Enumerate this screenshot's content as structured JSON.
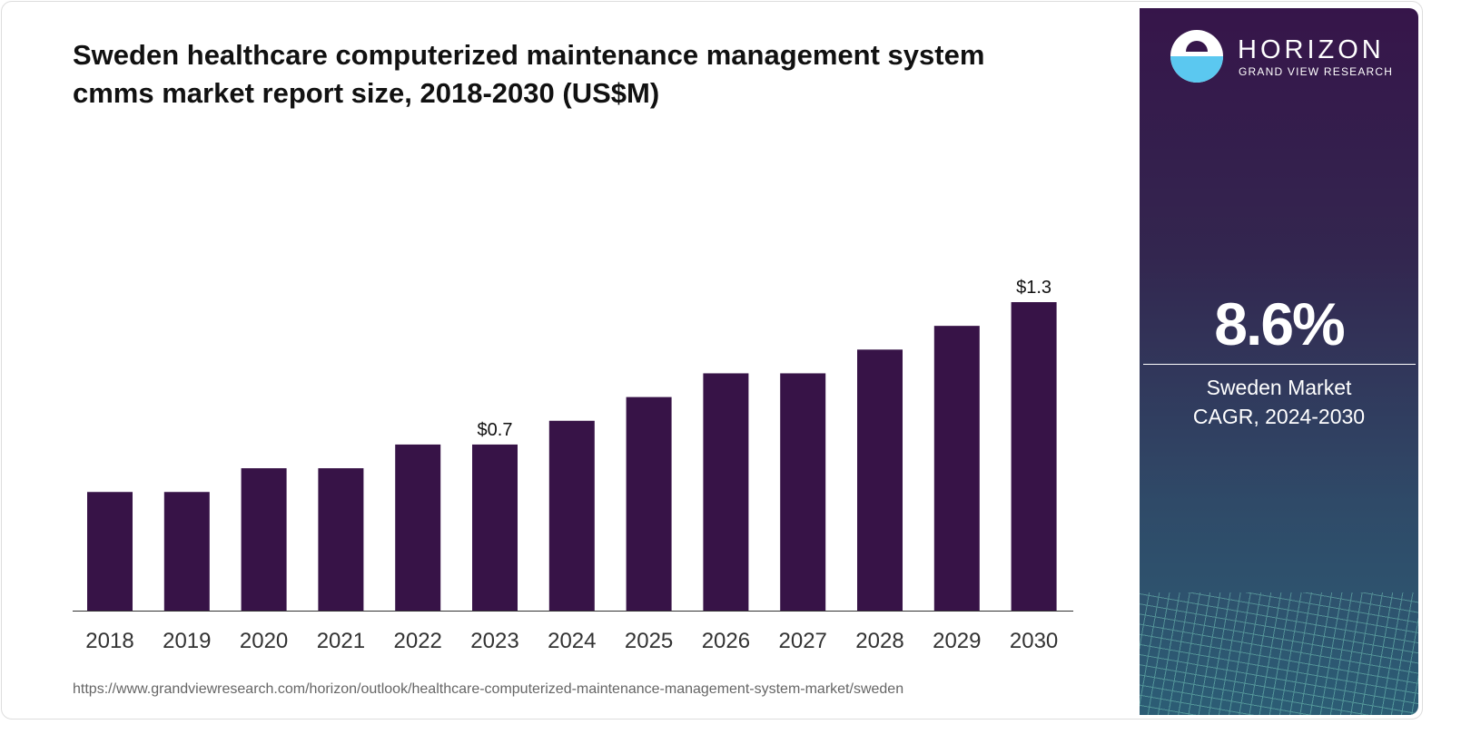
{
  "chart_data": {
    "type": "bar",
    "title": "Sweden healthcare computerized maintenance management system cmms market report size, 2018-2030 (US$M)",
    "title_lines": [
      "Sweden healthcare computerized maintenance management system",
      "cmms market report size, 2018-2030 (US$M)"
    ],
    "categories": [
      "2018",
      "2019",
      "2020",
      "2021",
      "2022",
      "2023",
      "2024",
      "2025",
      "2026",
      "2027",
      "2028",
      "2029",
      "2030"
    ],
    "values": [
      0.5,
      0.5,
      0.6,
      0.6,
      0.7,
      0.7,
      0.8,
      0.9,
      1.0,
      1.0,
      1.1,
      1.2,
      1.3
    ],
    "data_labels": {
      "2023": "$0.7",
      "2030": "$1.3"
    },
    "ylim": [
      0,
      1.3
    ],
    "bar_color": "#371347",
    "grid": false
  },
  "source_url": "https://www.grandviewresearch.com/horizon/outlook/healthcare-computerized-maintenance-management-system-market/sweden",
  "panel": {
    "brand": "HORIZON",
    "brand_sub": "GRAND VIEW RESEARCH",
    "cagr": "8.6%",
    "label_line1": "Sweden Market",
    "label_line2": "CAGR, 2024-2030"
  }
}
